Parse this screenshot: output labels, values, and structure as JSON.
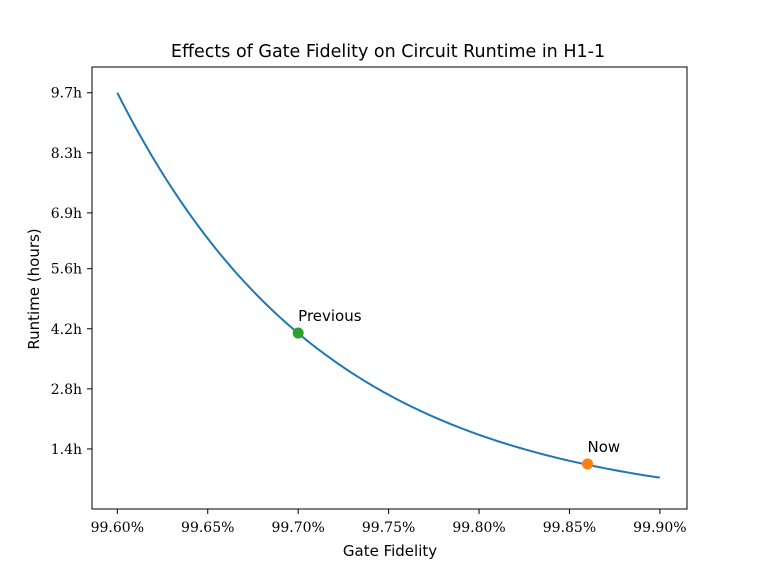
{
  "chart_data": {
    "type": "line",
    "title": "Effects of Gate Fidelity on Circuit Runtime in H1-1",
    "xlabel": "Gate Fidelity",
    "ylabel": "Runtime (hours)",
    "xlim": [
      99.586,
      99.915
    ],
    "ylim": [
      0.0,
      10.3
    ],
    "x_ticks": [
      99.6,
      99.65,
      99.7,
      99.75,
      99.8,
      99.85,
      99.9
    ],
    "x_tick_labels": [
      "99.60%",
      "99.65%",
      "99.70%",
      "99.75%",
      "99.80%",
      "99.85%",
      "99.90%"
    ],
    "y_ticks": [
      1.4,
      2.8,
      4.2,
      5.6,
      6.9,
      8.3,
      9.7
    ],
    "y_tick_labels": [
      "1.4h",
      "2.8h",
      "4.2h",
      "5.6h",
      "6.9h",
      "8.3h",
      "9.7h"
    ],
    "grid": false,
    "series": [
      {
        "color": "#1f77b4",
        "x": [
          99.6,
          99.625,
          99.65,
          99.675,
          99.7,
          99.725,
          99.75,
          99.775,
          99.8,
          99.825,
          99.85,
          99.875,
          99.9
        ],
        "y": [
          9.7,
          7.82,
          6.3,
          5.08,
          4.1,
          3.3,
          2.66,
          2.15,
          1.73,
          1.4,
          1.13,
          0.91,
          0.73
        ]
      }
    ],
    "points": [
      {
        "label": "Previous",
        "x": 99.7,
        "y": 4.1,
        "color": "#2ca02c"
      },
      {
        "label": "Now",
        "x": 99.86,
        "y": 1.05,
        "color": "#ff7f0e"
      }
    ]
  }
}
